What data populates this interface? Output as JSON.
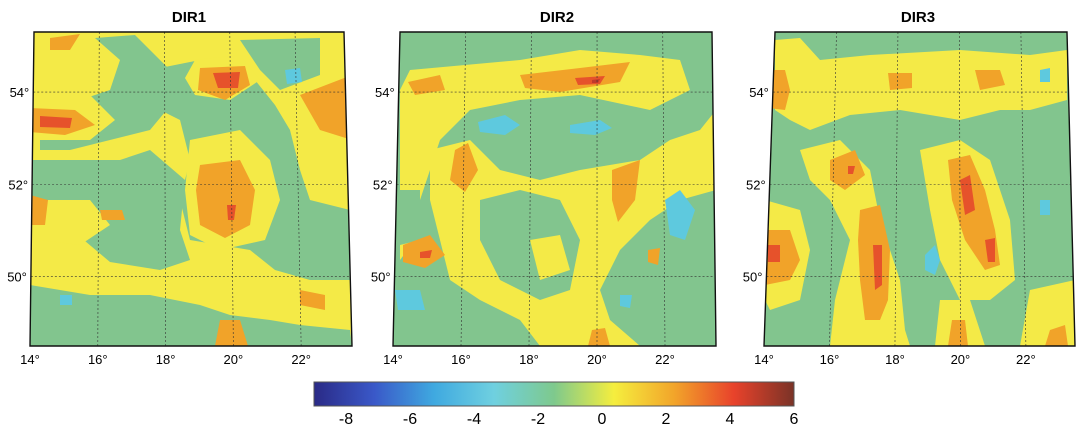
{
  "panels": [
    {
      "title": "DIR1",
      "lat_labels": [
        "54°",
        "52°",
        "50°"
      ],
      "lon_labels": [
        "14°",
        "16°",
        "18°",
        "20°",
        "22°"
      ]
    },
    {
      "title": "DIR2",
      "lat_labels": [
        "54°",
        "52°",
        "50°"
      ],
      "lon_labels": [
        "14°",
        "16°",
        "18°",
        "20°",
        "22°"
      ]
    },
    {
      "title": "DIR3",
      "lat_labels": [
        "54°",
        "52°",
        "50°"
      ],
      "lon_labels": [
        "14°",
        "16°",
        "18°",
        "20°",
        "22°"
      ]
    }
  ],
  "map_extent": {
    "lon_min": 14,
    "lon_max": 23.5,
    "lat_min": 48.5,
    "lat_max": 55.3
  },
  "colorbar": {
    "tick_labels": [
      "-8",
      "-6",
      "-4",
      "-2",
      "0",
      "2",
      "4",
      "6"
    ],
    "range": [
      -9,
      6
    ],
    "colors": [
      "#2a2a86",
      "#3a58c8",
      "#3fa9e0",
      "#6fd0e0",
      "#7ec98d",
      "#f5ee3e",
      "#f2a52a",
      "#e8422b",
      "#7a3327"
    ]
  },
  "color_classes": {
    "cyan": "#5ec9de",
    "green": "#82c58e",
    "yellow": "#f4ea47",
    "orange": "#f1a329",
    "red": "#e6522b"
  }
}
